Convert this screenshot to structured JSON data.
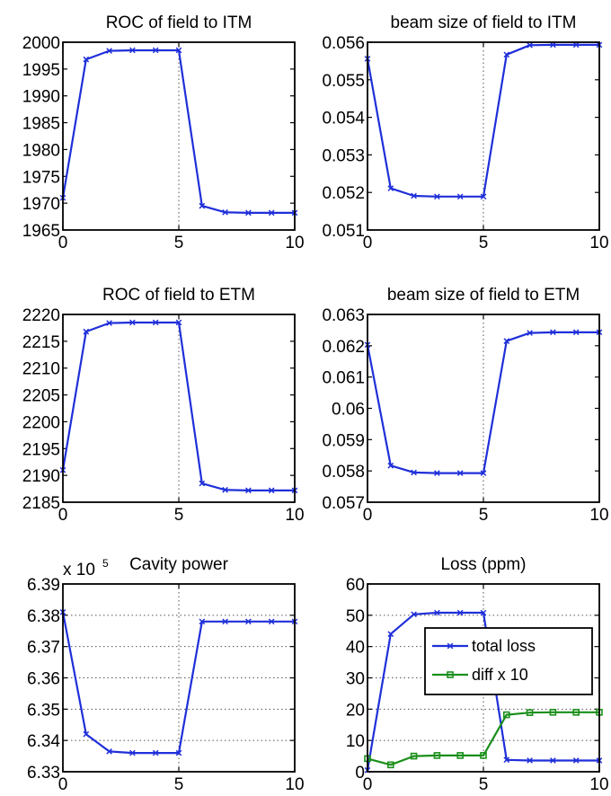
{
  "chart_data": [
    {
      "type": "line",
      "title": "ROC of field to ITM",
      "xlim": [
        0,
        10
      ],
      "ylim": [
        1965,
        2000
      ],
      "xticks": [
        "0",
        "5",
        "10"
      ],
      "yticks": [
        "1965",
        "1970",
        "1975",
        "1980",
        "1985",
        "1990",
        "1995",
        "2000"
      ],
      "grid_x": [
        5
      ],
      "x": [
        0,
        1,
        2,
        3,
        4,
        5,
        6,
        7,
        8,
        9,
        10
      ],
      "series": [
        {
          "values": [
            1971.0,
            1996.8,
            1998.4,
            1998.5,
            1998.5,
            1998.5,
            1969.5,
            1968.3,
            1968.2,
            1968.2,
            1968.2
          ],
          "color": "#1f2fd9",
          "marker": "x"
        }
      ]
    },
    {
      "type": "line",
      "title": "beam size of field to ITM",
      "xlim": [
        0,
        10
      ],
      "ylim": [
        0.051,
        0.056
      ],
      "xticks": [
        "0",
        "5",
        "10"
      ],
      "yticks": [
        "0.051",
        "0.052",
        "0.053",
        "0.054",
        "0.055",
        "0.056"
      ],
      "grid_x": [
        5
      ],
      "x": [
        0,
        1,
        2,
        3,
        4,
        5,
        6,
        7,
        8,
        9,
        10
      ],
      "series": [
        {
          "values": [
            0.05556,
            0.05211,
            0.05191,
            0.05189,
            0.05189,
            0.05189,
            0.05567,
            0.05592,
            0.05593,
            0.05593,
            0.05593
          ],
          "color": "#1f2fd9",
          "marker": "x"
        }
      ]
    },
    {
      "type": "line",
      "title": "ROC of field to ETM",
      "xlim": [
        0,
        10
      ],
      "ylim": [
        2185,
        2220
      ],
      "xticks": [
        "0",
        "5",
        "10"
      ],
      "yticks": [
        "2185",
        "2190",
        "2195",
        "2200",
        "2205",
        "2210",
        "2215",
        "2220"
      ],
      "grid_x": [
        5
      ],
      "x": [
        0,
        1,
        2,
        3,
        4,
        5,
        6,
        7,
        8,
        9,
        10
      ],
      "series": [
        {
          "values": [
            2191.0,
            2216.8,
            2218.4,
            2218.5,
            2218.5,
            2218.5,
            2188.5,
            2187.3,
            2187.2,
            2187.2,
            2187.2
          ],
          "color": "#1f2fd9",
          "marker": "x"
        }
      ]
    },
    {
      "type": "line",
      "title": "beam size of field to ETM",
      "xlim": [
        0,
        10
      ],
      "ylim": [
        0.057,
        0.063
      ],
      "xticks": [
        "0",
        "5",
        "10"
      ],
      "yticks": [
        "0.057",
        "0.058",
        "0.059",
        "0.06",
        "0.061",
        "0.062",
        "0.063"
      ],
      "grid_x": [
        5
      ],
      "x": [
        0,
        1,
        2,
        3,
        4,
        5,
        6,
        7,
        8,
        9,
        10
      ],
      "series": [
        {
          "values": [
            0.06203,
            0.05817,
            0.05795,
            0.05793,
            0.05793,
            0.05793,
            0.06215,
            0.06241,
            0.06243,
            0.06243,
            0.06243
          ],
          "color": "#1f2fd9",
          "marker": "x"
        }
      ]
    },
    {
      "type": "line",
      "title": "Cavity power",
      "y_multiplier": "x 10",
      "y_exponent": "5",
      "xlim": [
        0,
        10
      ],
      "ylim": [
        6.33,
        6.39
      ],
      "xticks": [
        "0",
        "5",
        "10"
      ],
      "yticks": [
        "6.33",
        "6.34",
        "6.35",
        "6.36",
        "6.37",
        "6.38",
        "6.39"
      ],
      "grid_x": [
        5
      ],
      "grid_y": [
        6.34,
        6.35,
        6.36,
        6.37,
        6.38
      ],
      "x": [
        0,
        1,
        2,
        3,
        4,
        5,
        6,
        7,
        8,
        9,
        10
      ],
      "series": [
        {
          "values": [
            6.381,
            6.342,
            6.3365,
            6.336,
            6.336,
            6.336,
            6.378,
            6.378,
            6.378,
            6.378,
            6.378
          ],
          "color": "#1f2fd9",
          "marker": "x"
        }
      ]
    },
    {
      "type": "line",
      "title": "Loss (ppm)",
      "xlim": [
        0,
        10
      ],
      "ylim": [
        0,
        60
      ],
      "xticks": [
        "0",
        "5",
        "10"
      ],
      "yticks": [
        "0",
        "10",
        "20",
        "30",
        "40",
        "50",
        "60"
      ],
      "grid_x": [
        5
      ],
      "grid_y": [
        10,
        20,
        30,
        40,
        50
      ],
      "x": [
        0,
        1,
        2,
        3,
        4,
        5,
        6,
        7,
        8,
        9,
        10
      ],
      "legend": "right",
      "series": [
        {
          "name": "total loss",
          "values": [
            0.5,
            44,
            50.3,
            50.8,
            50.8,
            50.8,
            3.8,
            3.6,
            3.6,
            3.6,
            3.6
          ],
          "color": "#1f2fd9",
          "marker": "x"
        },
        {
          "name": "diff x 10",
          "values": [
            4.2,
            2.2,
            5.0,
            5.2,
            5.2,
            5.2,
            18.2,
            18.9,
            19.0,
            19.0,
            19.0
          ],
          "color": "#1a8f1a",
          "marker": "square"
        }
      ]
    }
  ]
}
